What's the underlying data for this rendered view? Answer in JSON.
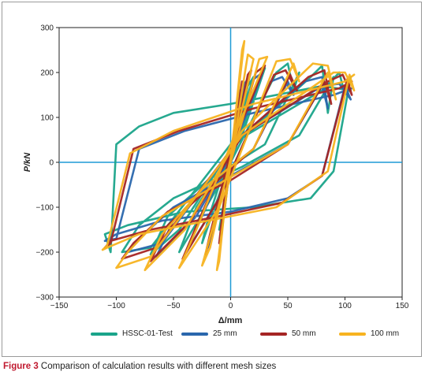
{
  "figure": {
    "caption_label": "Figure 3",
    "caption_text": " Comparison of calculation results with different mesh sizes"
  },
  "chart_data": {
    "type": "line",
    "xlabel": "Δ/mm",
    "ylabel": "P/kN",
    "xlim": [
      -150,
      150
    ],
    "ylim": [
      -300,
      300
    ],
    "x_ticks": [
      -150,
      -100,
      -50,
      0,
      50,
      100,
      150
    ],
    "y_ticks": [
      -300,
      -200,
      -100,
      0,
      100,
      200,
      300
    ],
    "grid": false,
    "legend_position": "bottom",
    "series": [
      {
        "name": "HSSC-01-Test",
        "color": "#1aa48a",
        "x": [
          0,
          5,
          10,
          -5,
          -10,
          0,
          15,
          20,
          -20,
          -25,
          0,
          25,
          30,
          10,
          -30,
          -45,
          -10,
          40,
          50,
          55,
          60,
          30,
          -20,
          -55,
          -70,
          -45,
          0,
          70,
          80,
          85,
          90,
          60,
          10,
          -50,
          -80,
          -95,
          -70,
          0,
          80,
          95,
          100,
          105,
          90,
          70,
          20,
          -40,
          -90,
          -110,
          -105,
          -100,
          -80,
          -50,
          0,
          80,
          105
        ],
        "y": [
          0,
          100,
          150,
          -80,
          -150,
          0,
          170,
          190,
          -130,
          -180,
          0,
          180,
          210,
          60,
          -100,
          -200,
          -50,
          200,
          220,
          160,
          200,
          40,
          -40,
          -120,
          -205,
          -150,
          30,
          190,
          215,
          110,
          190,
          60,
          -10,
          -80,
          -140,
          -200,
          -190,
          40,
          160,
          200,
          150,
          190,
          -20,
          -80,
          -100,
          -110,
          -140,
          -160,
          -200,
          40,
          80,
          110,
          130,
          170,
          160
        ]
      },
      {
        "name": "25 mm",
        "color": "#2a67ad",
        "x": [
          0,
          5,
          8,
          -5,
          -8,
          0,
          12,
          15,
          -15,
          -20,
          0,
          20,
          28,
          5,
          -25,
          -40,
          -10,
          35,
          45,
          55,
          50,
          20,
          -20,
          -50,
          -65,
          -30,
          10,
          65,
          80,
          85,
          80,
          50,
          0,
          -50,
          -80,
          -90,
          -60,
          10,
          80,
          95,
          105,
          100,
          80,
          50,
          0,
          -60,
          -100,
          -110,
          -100,
          -80,
          -40,
          20,
          90,
          106
        ],
        "y": [
          0,
          90,
          160,
          -80,
          -160,
          0,
          175,
          185,
          -150,
          -190,
          0,
          185,
          200,
          50,
          -120,
          -205,
          -80,
          180,
          190,
          150,
          180,
          30,
          -50,
          -130,
          -210,
          -120,
          60,
          180,
          190,
          120,
          170,
          40,
          -30,
          -100,
          -170,
          -200,
          -180,
          60,
          170,
          175,
          140,
          170,
          -30,
          -80,
          -110,
          -130,
          -160,
          -175,
          -170,
          30,
          70,
          110,
          150,
          165
        ]
      },
      {
        "name": "50 mm",
        "color": "#a52524",
        "x": [
          0,
          6,
          10,
          -6,
          -10,
          0,
          15,
          18,
          -18,
          -22,
          0,
          22,
          30,
          5,
          -28,
          -42,
          -10,
          38,
          48,
          58,
          52,
          20,
          -20,
          -55,
          -70,
          -35,
          10,
          68,
          82,
          88,
          82,
          50,
          0,
          -55,
          -85,
          -95,
          -65,
          10,
          85,
          98,
          106,
          102,
          80,
          45,
          -10,
          -70,
          -105,
          -110,
          -105,
          -85,
          -45,
          20,
          95,
          106
        ],
        "y": [
          0,
          110,
          180,
          -90,
          -180,
          0,
          195,
          205,
          -160,
          -205,
          0,
          200,
          215,
          60,
          -130,
          -215,
          -80,
          195,
          205,
          160,
          195,
          30,
          -60,
          -140,
          -220,
          -130,
          60,
          190,
          205,
          130,
          180,
          40,
          -40,
          -110,
          -180,
          -215,
          -190,
          60,
          180,
          195,
          150,
          185,
          -30,
          -90,
          -120,
          -150,
          -175,
          -190,
          -180,
          30,
          70,
          120,
          165,
          180
        ]
      },
      {
        "name": "100 mm",
        "color": "#f7b320",
        "x": [
          0,
          6,
          10,
          12,
          -6,
          -10,
          -12,
          0,
          15,
          20,
          -18,
          -25,
          0,
          25,
          32,
          5,
          -30,
          -45,
          -10,
          40,
          52,
          60,
          55,
          20,
          -25,
          -60,
          -75,
          -40,
          10,
          72,
          85,
          92,
          85,
          50,
          -5,
          -60,
          -90,
          -100,
          -70,
          10,
          90,
          100,
          108,
          104,
          85,
          40,
          -20,
          -80,
          -108,
          -112,
          -108,
          -88,
          -50,
          20,
          100,
          108
        ],
        "y": [
          0,
          150,
          250,
          270,
          -120,
          -220,
          -240,
          0,
          240,
          230,
          -190,
          -230,
          0,
          230,
          235,
          70,
          -150,
          -235,
          -100,
          225,
          230,
          180,
          220,
          30,
          -60,
          -160,
          -240,
          -150,
          70,
          220,
          215,
          140,
          200,
          40,
          -40,
          -120,
          -200,
          -235,
          -210,
          60,
          200,
          200,
          160,
          195,
          -20,
          -100,
          -130,
          -160,
          -190,
          -195,
          -185,
          20,
          70,
          130,
          180,
          195
        ]
      }
    ]
  }
}
